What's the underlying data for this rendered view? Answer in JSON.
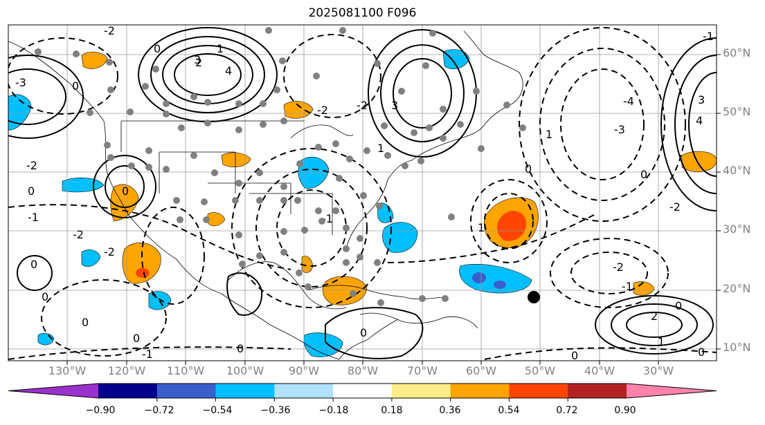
{
  "title": "2025081100 F096",
  "map": {
    "lat_labels": [
      "60°N",
      "50°N",
      "40°N",
      "30°N",
      "20°N",
      "10°N"
    ],
    "lon_labels": [
      "130°W",
      "120°W",
      "110°W",
      "100°W",
      "90°W",
      "80°W",
      "70°W",
      "60°W",
      "50°W",
      "40°W",
      "30°W"
    ],
    "contour_labels": [
      "2",
      "1",
      "0",
      "-1",
      "-2",
      "-3",
      "-4",
      "3",
      "4"
    ],
    "storm_marker": "black-dot"
  },
  "colorbar": {
    "ticks": [
      "−0.90",
      "−0.72",
      "−0.54",
      "−0.36",
      "−0.18",
      "0.18",
      "0.36",
      "0.54",
      "0.72",
      "0.90"
    ],
    "colors": [
      "#9932cc",
      "#00008b",
      "#3a5fcd",
      "#00bfff",
      "#b0e2ff",
      "#ffffff",
      "#ffec8b",
      "#ffa500",
      "#ff4500",
      "#b22222",
      "#ff82ab"
    ]
  }
}
